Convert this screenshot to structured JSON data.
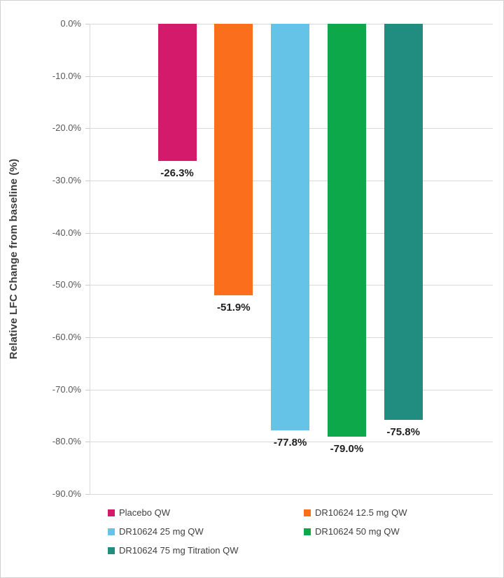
{
  "chart_data": {
    "type": "bar",
    "title": "",
    "xlabel": "",
    "ylabel": "Relative LFC Change from baseline (%)",
    "ylim": [
      -90,
      0
    ],
    "grid": true,
    "legend_position": "bottom",
    "ytick_labels": [
      "0.0%",
      "-10.0%",
      "-20.0%",
      "-30.0%",
      "-40.0%",
      "-50.0%",
      "-60.0%",
      "-70.0%",
      "-80.0%",
      "-90.0%"
    ],
    "series": [
      {
        "name": "Placebo QW",
        "value": -26.3,
        "label": "-26.3%",
        "color": "#d41a6a"
      },
      {
        "name": "DR10624 12.5 mg QW",
        "value": -51.9,
        "label": "-51.9%",
        "color": "#fa6e1c"
      },
      {
        "name": "DR10624 25 mg QW",
        "value": -77.8,
        "label": "-77.8%",
        "color": "#66c3e8"
      },
      {
        "name": "DR10624 50 mg QW",
        "value": -79.0,
        "label": "-79.0%",
        "color": "#0da84a"
      },
      {
        "name": "DR10624 75 mg Titration QW",
        "value": -75.8,
        "label": "-75.8%",
        "color": "#218d80"
      }
    ]
  }
}
